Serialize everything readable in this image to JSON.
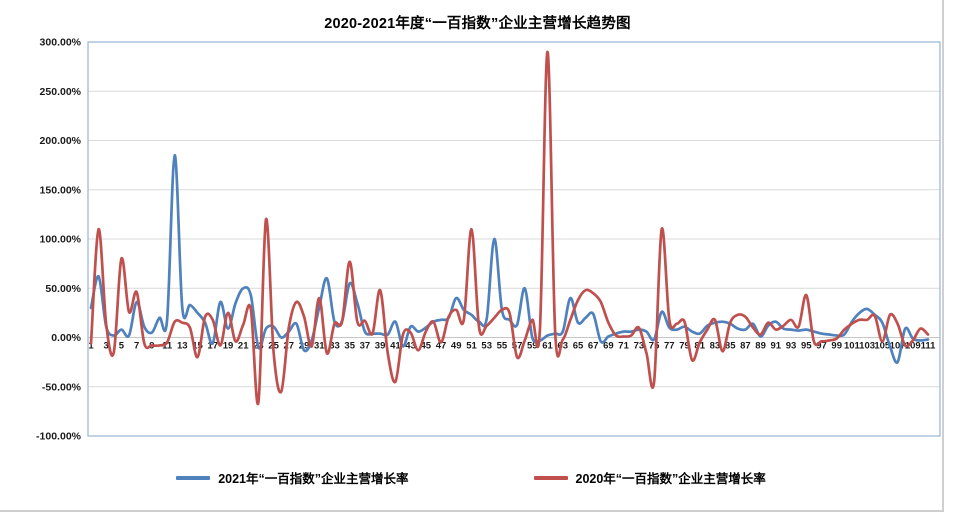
{
  "title": "2020-2021年度“一百指数”企业主营增长趋势图",
  "legend": {
    "items": [
      {
        "label": "2021年“一百指数”企业主营增长率",
        "color": "#4F81BD"
      },
      {
        "label": "2020年“一百指数”企业主营增长率",
        "color": "#C0504D"
      }
    ]
  },
  "axes": {
    "y_tick_labels": [
      "300.00%",
      "250.00%",
      "200.00%",
      "150.00%",
      "100.00%",
      "50.00%",
      "0.00%",
      "-50.00%",
      "-100.00%"
    ],
    "x_tick_labels": [
      "1",
      "3",
      "5",
      "7",
      "9",
      "11",
      "13",
      "15",
      "17",
      "19",
      "21",
      "23",
      "25",
      "27",
      "29",
      "31",
      "33",
      "35",
      "37",
      "39",
      "41",
      "43",
      "45",
      "47",
      "49",
      "51",
      "53",
      "55",
      "57",
      "59",
      "61",
      "63",
      "65",
      "67",
      "69",
      "71",
      "73",
      "75",
      "77",
      "79",
      "81",
      "83",
      "85",
      "87",
      "89",
      "91",
      "93",
      "95",
      "97",
      "99",
      "101",
      "103",
      "105",
      "107",
      "109",
      "111"
    ]
  },
  "chart_data": {
    "type": "line",
    "title": "2020-2021年度“一百指数”企业主营增长趋势图",
    "x_range": [
      1,
      111
    ],
    "ylim": [
      -100,
      300
    ],
    "y_tick_step": 50,
    "y_unit": "%",
    "grid": "horizontal",
    "legend_position": "bottom",
    "line_style": "smooth",
    "series": [
      {
        "name": "2021年“一百指数”企业主营增长率",
        "color": "#4F81BD",
        "values": [
          30,
          62,
          11,
          2,
          8,
          2,
          36,
          11,
          5,
          20,
          18,
          185,
          30,
          33,
          25,
          15,
          -6,
          36,
          9,
          35,
          50,
          43,
          -10,
          9,
          11,
          0,
          6,
          14,
          -13,
          -3,
          31,
          60,
          16,
          17,
          55,
          35,
          6,
          4,
          4,
          3,
          16,
          -9,
          11,
          6,
          10,
          16,
          18,
          20,
          40,
          28,
          23,
          16,
          19,
          100,
          28,
          18,
          13,
          50,
          0,
          -3,
          2,
          4,
          6,
          40,
          15,
          20,
          24,
          -4,
          1,
          4,
          6,
          6,
          8,
          6,
          -2,
          26,
          10,
          8,
          11,
          6,
          4,
          12,
          15,
          16,
          14,
          9,
          8,
          14,
          1,
          12,
          16,
          9,
          8,
          7,
          8,
          6,
          4,
          3,
          2,
          3,
          16,
          25,
          29,
          23,
          15,
          -9,
          -25,
          9,
          -1,
          -3,
          -2
        ]
      },
      {
        "name": "2020年“一百指数”企业主营增长率",
        "color": "#C0504D",
        "values": [
          -6,
          110,
          13,
          -15,
          80,
          26,
          46,
          -6,
          -8,
          -8,
          -5,
          16,
          15,
          10,
          -20,
          21,
          18,
          -8,
          25,
          -4,
          13,
          29,
          -66,
          120,
          -15,
          -55,
          10,
          36,
          21,
          -9,
          40,
          -16,
          14,
          16,
          77,
          16,
          17,
          4,
          48,
          -16,
          -45,
          3,
          5,
          -13,
          6,
          16,
          -5,
          21,
          28,
          18,
          110,
          10,
          12,
          20,
          28,
          25,
          -20,
          -3,
          18,
          8,
          290,
          5,
          -2,
          18,
          38,
          48,
          45,
          36,
          15,
          2,
          1,
          2,
          10,
          -16,
          -45,
          110,
          18,
          14,
          16,
          -23,
          -5,
          8,
          18,
          -14,
          15,
          23,
          21,
          10,
          3,
          15,
          8,
          12,
          18,
          11,
          43,
          -4,
          -4,
          -3,
          -1,
          8,
          14,
          18,
          18,
          22,
          -4,
          23,
          14,
          -8,
          -3,
          9,
          3
        ]
      }
    ],
    "colors": {
      "gridline": "#D9D9D9",
      "plot_border": "#95B3D7",
      "axis_line": "#C6C6C6",
      "tick_text": "#1a1a1a"
    }
  }
}
